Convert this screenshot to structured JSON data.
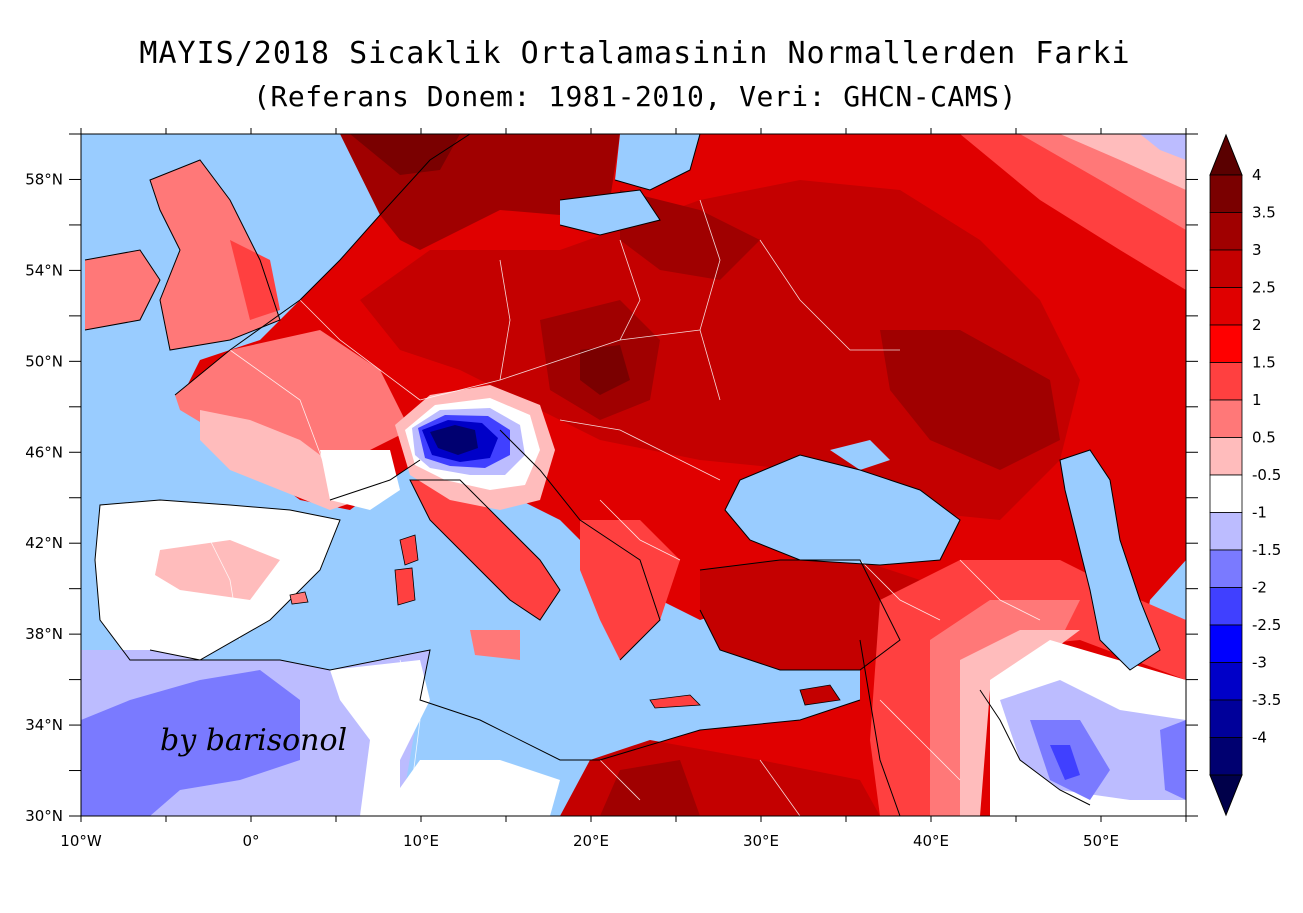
{
  "title": "MAYIS/2018 Sicaklik Ortalamasinin Normallerden Farki",
  "subtitle": "(Referans Donem: 1981-2010, Veri: GHCN-CAMS)",
  "signature": "by barisonol",
  "map": {
    "lon_range": [
      -10,
      55
    ],
    "lat_range": [
      30,
      60
    ],
    "lon_ticks": [
      "10°W",
      "0°",
      "10°E",
      "20°E",
      "30°E",
      "40°E",
      "50°E"
    ],
    "lat_ticks": [
      "58°N",
      "54°N",
      "50°N",
      "46°N",
      "42°N",
      "38°N",
      "34°N",
      "30°N"
    ],
    "sea_color": "#99ccff",
    "land_outline_color": "#000000",
    "border_color": "#ffffff"
  },
  "colorbar": {
    "labels": [
      "4",
      "3.5",
      "3",
      "2.5",
      "2",
      "1.5",
      "1",
      "0.5",
      "-0.5",
      "-1",
      "-1.5",
      "-2",
      "-2.5",
      "-3",
      "-3.5",
      "-4"
    ],
    "colors": [
      "#7a0000",
      "#a00000",
      "#c40000",
      "#e00000",
      "#ff0000",
      "#ff4040",
      "#ff7878",
      "#ffbcbc",
      "#ffffff",
      "#bcbcff",
      "#7a7aff",
      "#4040ff",
      "#0000ff",
      "#0000c8",
      "#00009a",
      "#000070"
    ],
    "top_arrow_color": "#5a0000",
    "bottom_arrow_color": "#00004a"
  }
}
